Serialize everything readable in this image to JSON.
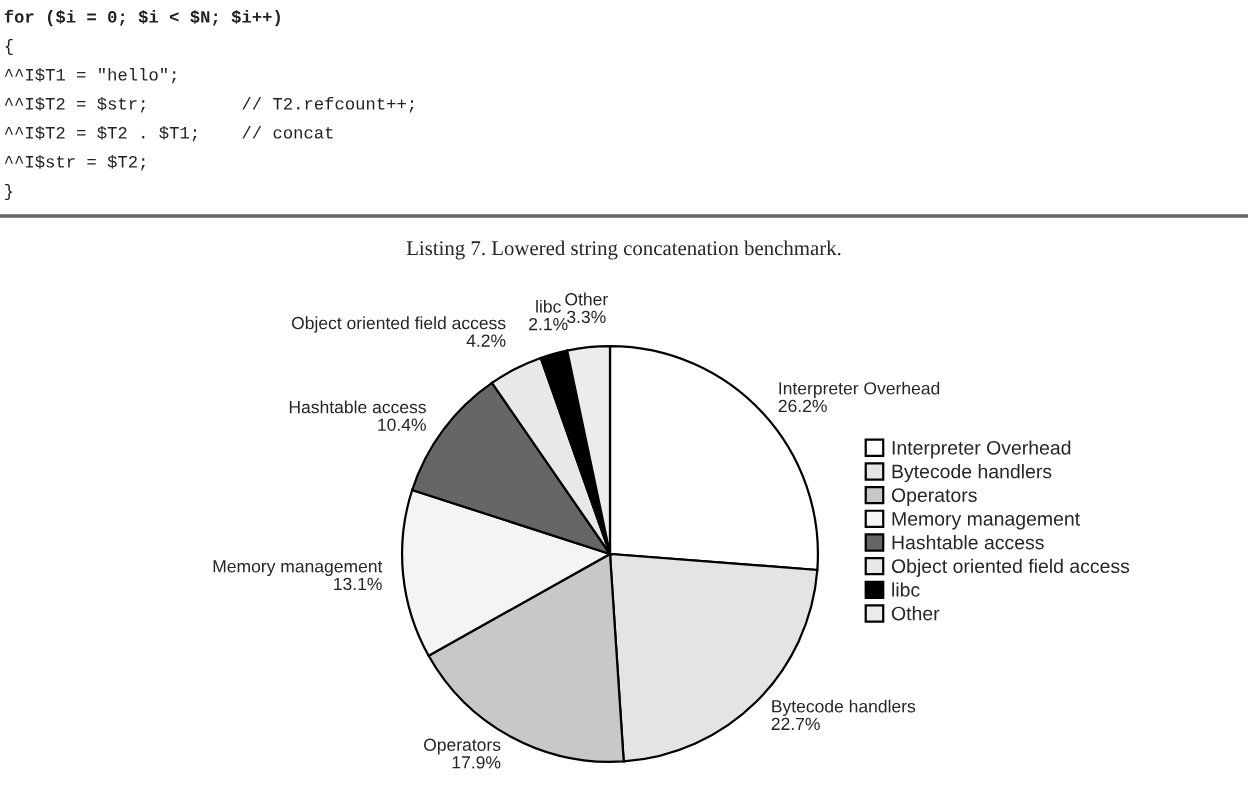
{
  "chart_data": {
    "type": "pie",
    "categories": [
      "Interpreter Overhead",
      "Bytecode handlers",
      "Operators",
      "Memory management",
      "Hashtable access",
      "Object oriented field access",
      "libc",
      "Other"
    ],
    "values": [
      26.2,
      22.7,
      17.9,
      13.1,
      10.4,
      4.2,
      2.1,
      3.3
    ],
    "value_labels": [
      "26.2%",
      "22.7%",
      "17.9%",
      "13.1%",
      "10.4%",
      "4.2%",
      "2.1%",
      "3.3%"
    ],
    "colors": [
      "#ffffff",
      "#e4e4e4",
      "#c8c8c8",
      "#f4f4f4",
      "#666666",
      "#e8e8e8",
      "#000000",
      "#ececec"
    ],
    "legend": "right",
    "annotations": [
      "for ($i = 0; $i < $N; $i++)",
      "{",
      "^^I$T1 = \"hello\";",
      "^^I$T2 = $str;         // T2.refcount++;",
      "^^I$T2 = $T2 . $T1;    // concat",
      "^^I$str = $T2;",
      "}",
      "Listing 7. Lowered string concatenation benchmark."
    ]
  }
}
